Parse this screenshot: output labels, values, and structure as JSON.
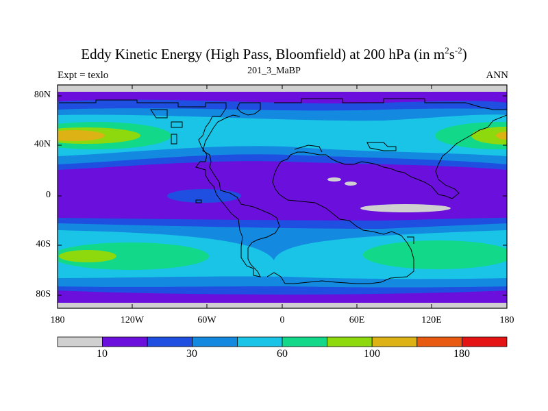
{
  "title": {
    "main": "Eddy Kinetic Energy (High Pass, Bloomfield) at 200 hPa (in m",
    "sup1": "2",
    "mid": "s",
    "sup2": "-2",
    "close": ")"
  },
  "subtitle": "201_3_MaBP",
  "left_label": "Expt = texlo",
  "right_label": "ANN",
  "lat_ticks": [
    "80N",
    "40N",
    "0",
    "40S",
    "80S"
  ],
  "lon_ticks": [
    "180",
    "120W",
    "60W",
    "0",
    "60E",
    "120E",
    "180"
  ],
  "colorbar": {
    "colors": [
      "#d0d0d0",
      "#6a0fdc",
      "#1f4fe0",
      "#1489e0",
      "#19c4e6",
      "#12d98a",
      "#8ed80e",
      "#dcb214",
      "#e85a10",
      "#e41414"
    ],
    "labels": [
      "10",
      "30",
      "60",
      "100",
      "180"
    ]
  },
  "field_colors": {
    "polar": "#d0d0d0",
    "low": "#6a0fdc",
    "dark_blue": "#1f4fe0",
    "mid_blue": "#1489e0",
    "cyan": "#19c4e6",
    "green": "#12d98a",
    "yellow_green": "#8ed80e",
    "orange": "#dcb214"
  }
}
